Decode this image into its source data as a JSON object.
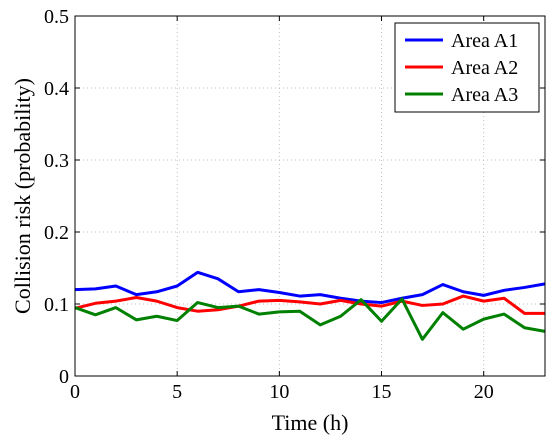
{
  "chart_data": {
    "type": "line",
    "xlabel": "Time (h)",
    "ylabel": "Collision risk (probability)",
    "xlim": [
      0,
      23
    ],
    "ylim": [
      0,
      0.5
    ],
    "x_ticks": [
      0,
      5,
      10,
      15,
      20
    ],
    "y_ticks": [
      0,
      0.1,
      0.2,
      0.3,
      0.4,
      0.5
    ],
    "grid": true,
    "legend_position": "top-right",
    "x": [
      0,
      1,
      2,
      3,
      4,
      5,
      6,
      7,
      8,
      9,
      10,
      11,
      12,
      13,
      14,
      15,
      16,
      17,
      18,
      19,
      20,
      21,
      22,
      23
    ],
    "series": [
      {
        "name": "Area A1",
        "color": "#0000ff",
        "values": [
          0.12,
          0.121,
          0.125,
          0.113,
          0.117,
          0.125,
          0.144,
          0.135,
          0.117,
          0.12,
          0.116,
          0.111,
          0.113,
          0.108,
          0.104,
          0.102,
          0.108,
          0.113,
          0.127,
          0.117,
          0.112,
          0.119,
          0.123,
          0.128
        ]
      },
      {
        "name": "Area A2",
        "color": "#ff0000",
        "values": [
          0.094,
          0.101,
          0.104,
          0.109,
          0.104,
          0.095,
          0.09,
          0.092,
          0.097,
          0.104,
          0.105,
          0.103,
          0.1,
          0.105,
          0.1,
          0.097,
          0.104,
          0.098,
          0.1,
          0.111,
          0.104,
          0.108,
          0.087,
          0.087
        ]
      },
      {
        "name": "Area A3",
        "color": "#008000",
        "values": [
          0.095,
          0.085,
          0.095,
          0.078,
          0.083,
          0.077,
          0.102,
          0.095,
          0.097,
          0.086,
          0.089,
          0.09,
          0.071,
          0.083,
          0.106,
          0.076,
          0.107,
          0.051,
          0.088,
          0.065,
          0.079,
          0.086,
          0.067,
          0.062
        ]
      }
    ]
  }
}
